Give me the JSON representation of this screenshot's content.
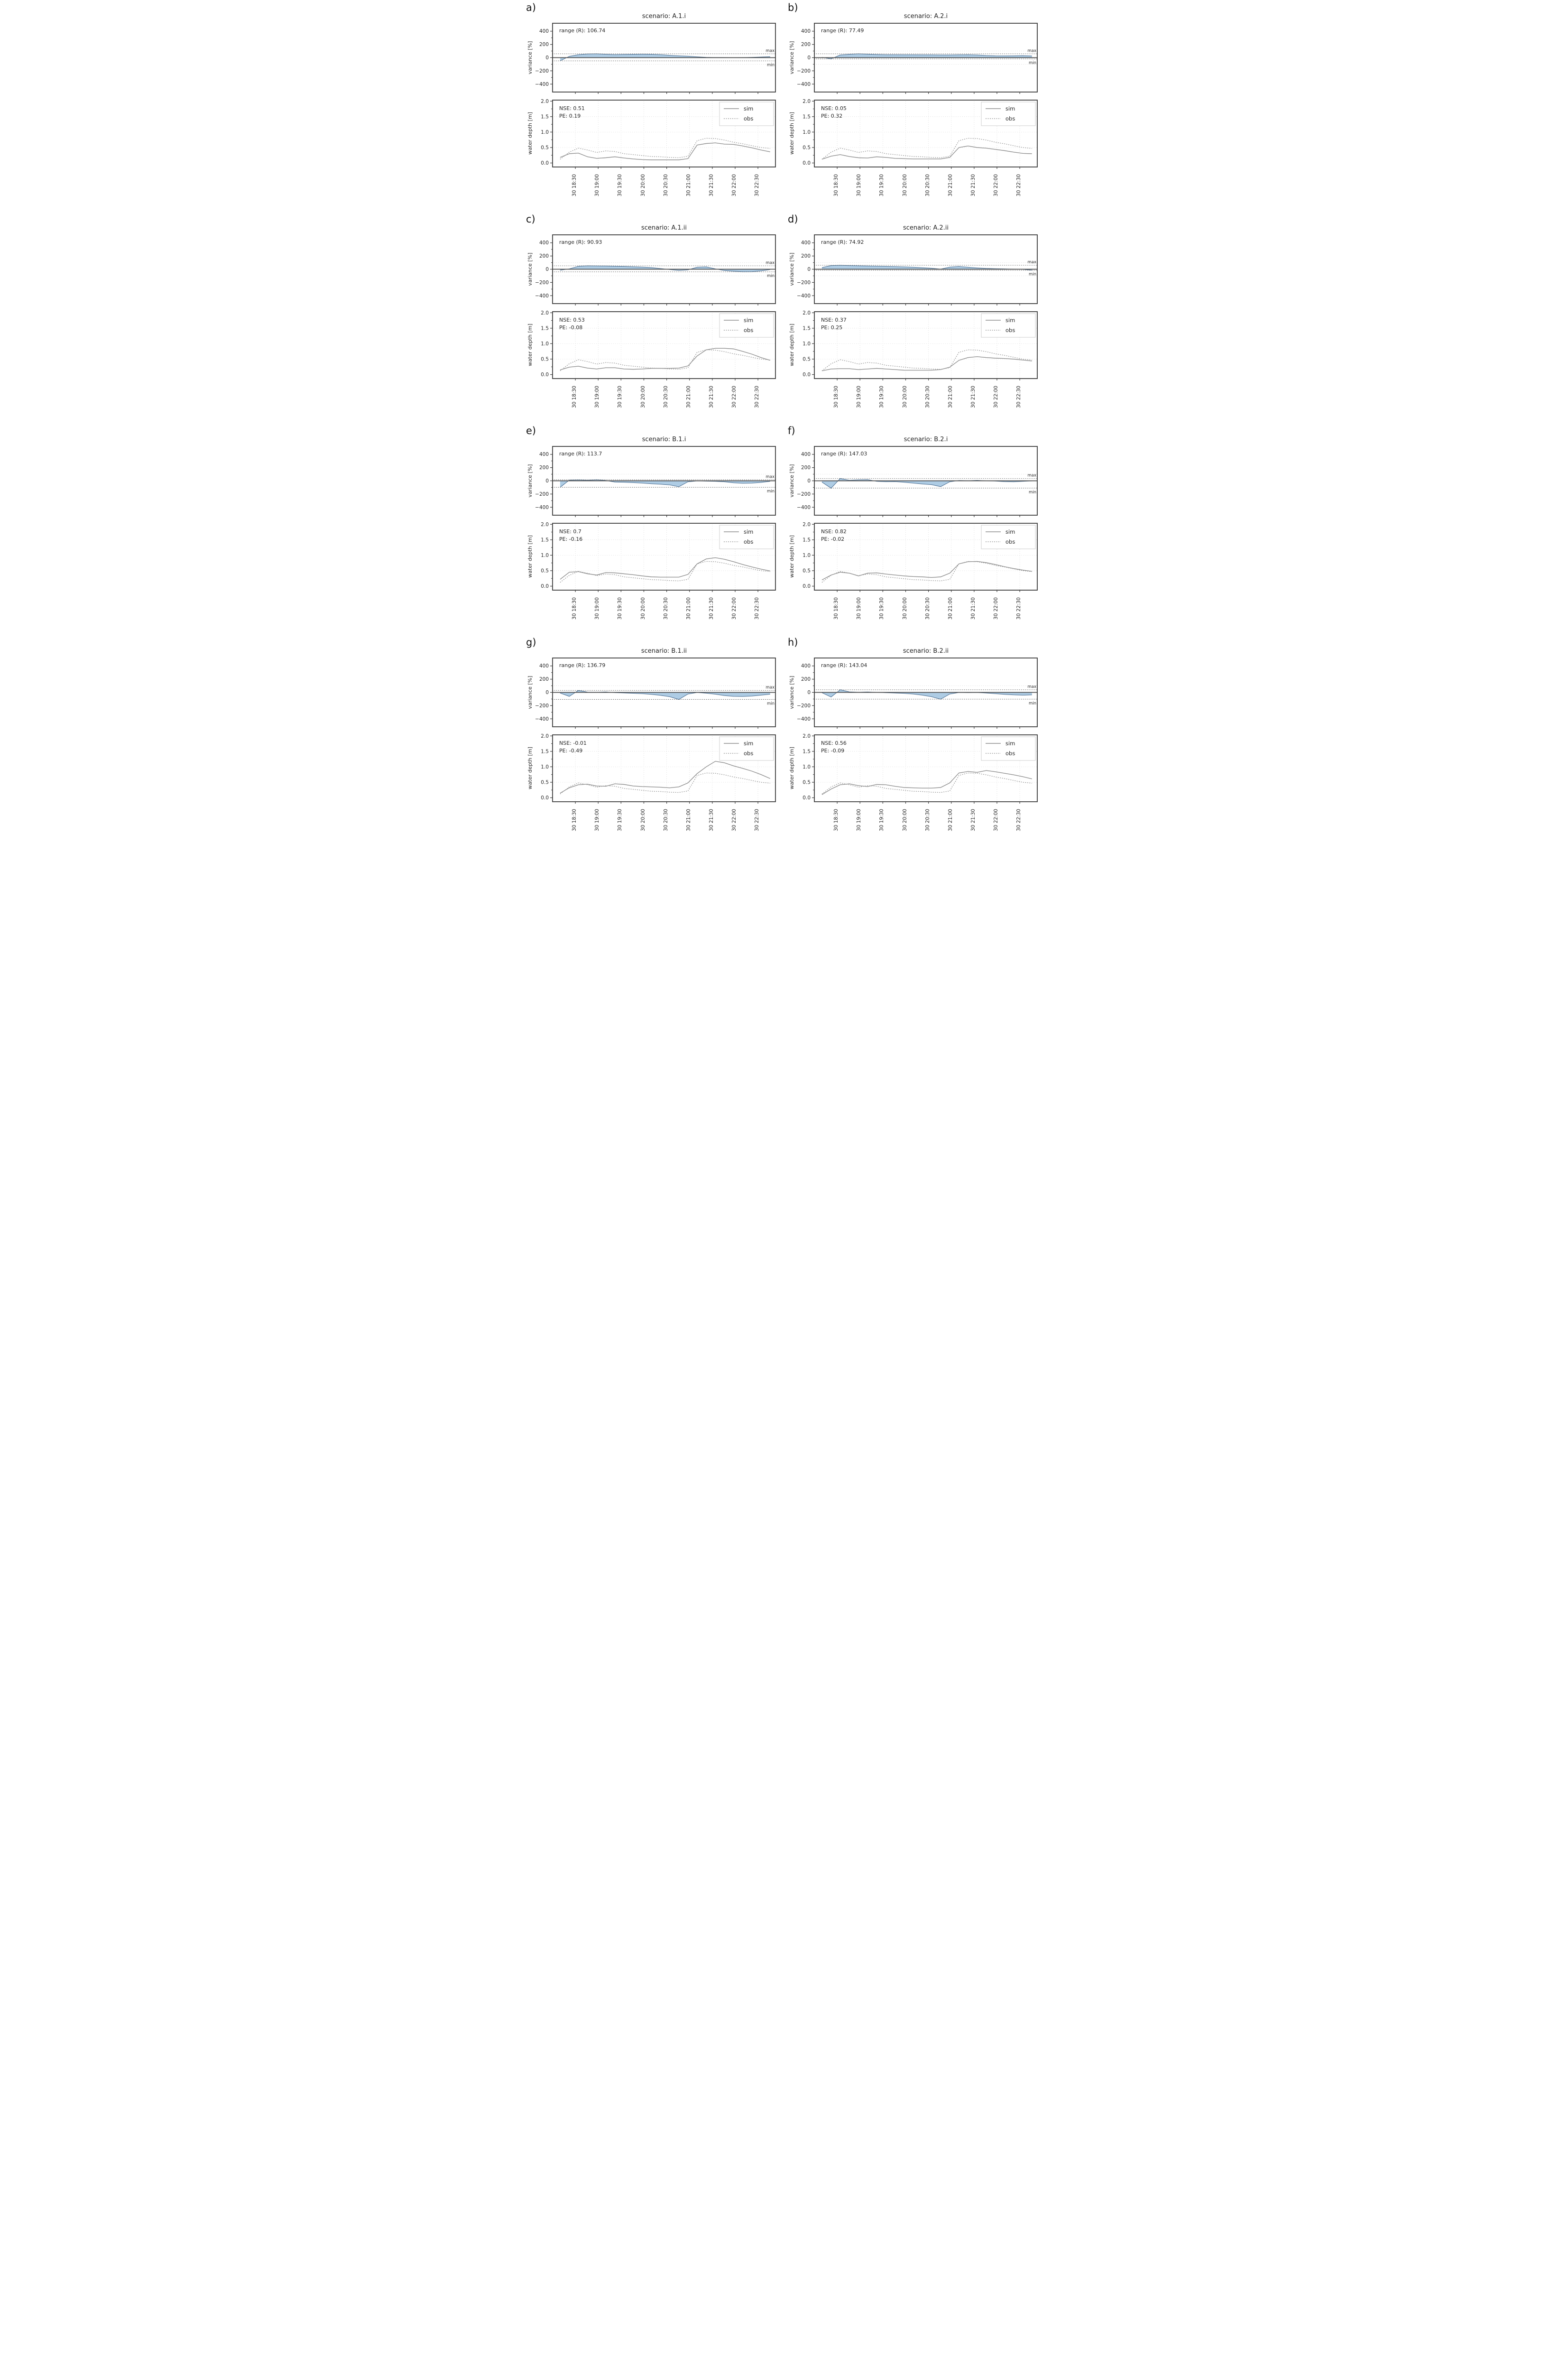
{
  "axes": {
    "x_tick_labels": [
      "30 18:30",
      "30 19:00",
      "30 19:30",
      "30 20:00",
      "30 20:30",
      "30 21:00",
      "30 21:30",
      "30 22:00",
      "30 22:30"
    ],
    "x_tick_minutes": [
      30,
      60,
      90,
      120,
      150,
      180,
      210,
      240,
      270
    ],
    "x_range_minutes": [
      0,
      293
    ],
    "variance": {
      "ylabel": "variance [%]",
      "ytick_labels": [
        "400",
        "200",
        "0",
        "−200",
        "−400"
      ],
      "ytick_values": [
        400,
        200,
        0,
        -200,
        -400
      ],
      "minor_tick_values": [
        300,
        100,
        -100,
        -300
      ],
      "grid_values": [
        100,
        -100
      ],
      "ylim": [
        -520,
        520
      ],
      "grid": "off"
    },
    "depth": {
      "ylabel": "water depth [m]",
      "ytick_labels": [
        "2.0",
        "1.5",
        "1.0",
        "0.5",
        "0.0"
      ],
      "ytick_values": [
        2.0,
        1.5,
        1.0,
        0.5,
        0.0
      ],
      "minor_tick_values": [
        1.75,
        1.25,
        0.75,
        0.25
      ],
      "grid_values": [
        1.5,
        1.0,
        0.5
      ],
      "ylim": [
        -0.13,
        2.05
      ],
      "grid": "on"
    }
  },
  "legend": {
    "sim_label": "sim",
    "obs_label": "obs",
    "position": "top-right"
  },
  "annotations": {
    "max_label": "max",
    "min_label": "min"
  },
  "colors": {
    "area_fill": "#aac9e3",
    "area_edge": "#44688c",
    "zero_line": "#4d4d4d",
    "dotted_line": "#555555",
    "sim_line": "#8f8f8f",
    "obs_line": "#9b9b9b",
    "grid": "#cfcfcf",
    "frame": "#3c3c3c",
    "legend_border": "#cccccc"
  },
  "chart_data": {
    "type": "line",
    "x_minutes": [
      10,
      22,
      34,
      46,
      58,
      70,
      82,
      94,
      106,
      118,
      130,
      142,
      154,
      166,
      178,
      190,
      202,
      214,
      226,
      238,
      250,
      262,
      274,
      286
    ],
    "obs_depth_m": [
      0.12,
      0.35,
      0.48,
      0.42,
      0.34,
      0.39,
      0.37,
      0.3,
      0.27,
      0.24,
      0.21,
      0.2,
      0.18,
      0.17,
      0.22,
      0.72,
      0.8,
      0.79,
      0.74,
      0.67,
      0.62,
      0.56,
      0.5,
      0.47
    ],
    "panels": [
      {
        "letter": "a)",
        "title": "scenario: A.1.i",
        "range_text": "range (R): 106.74",
        "range_R": 106.74,
        "nse_text": "NSE: 0.51",
        "nse": 0.51,
        "pe_text": "PE: 0.19",
        "pe": 0.19,
        "max_line": 58,
        "min_line": -49,
        "variance_pct": [
          -49,
          20,
          45,
          55,
          58,
          50,
          46,
          48,
          50,
          52,
          50,
          45,
          35,
          28,
          22,
          12,
          5,
          3,
          2,
          0,
          2,
          5,
          10,
          15
        ],
        "sim_depth_m": [
          0.18,
          0.3,
          0.32,
          0.2,
          0.15,
          0.17,
          0.2,
          0.16,
          0.13,
          0.11,
          0.1,
          0.1,
          0.1,
          0.1,
          0.14,
          0.58,
          0.63,
          0.65,
          0.61,
          0.6,
          0.55,
          0.49,
          0.42,
          0.36
        ]
      },
      {
        "letter": "b)",
        "title": "scenario: A.2.i",
        "range_text": "range (R): 77.49",
        "range_R": 77.49,
        "nse_text": "NSE: 0.05",
        "nse": 0.05,
        "pe_text": "PE: 0.32",
        "pe": 0.32,
        "max_line": 58,
        "min_line": -19,
        "variance_pct": [
          5,
          -19,
          40,
          50,
          58,
          52,
          47,
          44,
          44,
          43,
          43,
          42,
          42,
          40,
          40,
          43,
          44,
          40,
          32,
          28,
          27,
          28,
          30,
          26
        ],
        "sim_depth_m": [
          0.12,
          0.22,
          0.27,
          0.21,
          0.17,
          0.16,
          0.2,
          0.18,
          0.15,
          0.14,
          0.13,
          0.13,
          0.13,
          0.13,
          0.18,
          0.5,
          0.55,
          0.5,
          0.48,
          0.44,
          0.4,
          0.35,
          0.31,
          0.3
        ]
      },
      {
        "letter": "c)",
        "title": "scenario: A.1.ii",
        "range_text": "range (R): 90.93",
        "range_R": 90.93,
        "nse_text": "NSE: 0.53",
        "nse": 0.53,
        "pe_text": "PE: -0.08",
        "pe": -0.08,
        "max_line": 52,
        "min_line": -39,
        "variance_pct": [
          -15,
          5,
          45,
          52,
          50,
          48,
          45,
          42,
          38,
          32,
          25,
          10,
          -5,
          -18,
          -10,
          30,
          36,
          5,
          -20,
          -30,
          -39,
          -38,
          -25,
          -5
        ],
        "sim_depth_m": [
          0.15,
          0.24,
          0.27,
          0.21,
          0.18,
          0.22,
          0.22,
          0.18,
          0.17,
          0.18,
          0.2,
          0.2,
          0.2,
          0.21,
          0.28,
          0.6,
          0.8,
          0.85,
          0.85,
          0.83,
          0.75,
          0.66,
          0.55,
          0.46
        ]
      },
      {
        "letter": "d)",
        "title": "scenario: A.2.ii",
        "range_text": "range (R): 74.92",
        "range_R": 74.92,
        "nse_text": "NSE: 0.37",
        "nse": 0.37,
        "pe_text": "PE: 0.25",
        "pe": 0.25,
        "max_line": 60,
        "min_line": -15,
        "variance_pct": [
          25,
          55,
          60,
          55,
          52,
          49,
          46,
          43,
          40,
          36,
          30,
          24,
          15,
          2,
          32,
          42,
          30,
          20,
          12,
          8,
          5,
          2,
          -2,
          -15
        ],
        "sim_depth_m": [
          0.12,
          0.18,
          0.19,
          0.19,
          0.16,
          0.18,
          0.2,
          0.18,
          0.16,
          0.14,
          0.14,
          0.14,
          0.14,
          0.16,
          0.24,
          0.46,
          0.55,
          0.58,
          0.55,
          0.53,
          0.52,
          0.5,
          0.47,
          0.44
        ]
      },
      {
        "letter": "e)",
        "title": "scenario: B.1.i",
        "range_text": "range (R): 113.7",
        "range_R": 113.7,
        "nse_text": "NSE: 0.7",
        "nse": 0.7,
        "pe_text": "PE: -0.16",
        "pe": -0.16,
        "max_line": 16,
        "min_line": -98,
        "variance_pct": [
          -98,
          10,
          14,
          8,
          16,
          5,
          -20,
          -22,
          -28,
          -35,
          -45,
          -52,
          -62,
          -90,
          -15,
          -2,
          -5,
          -8,
          -15,
          -30,
          -38,
          -35,
          -25,
          -8
        ],
        "sim_depth_m": [
          0.22,
          0.45,
          0.47,
          0.4,
          0.36,
          0.44,
          0.43,
          0.4,
          0.37,
          0.33,
          0.3,
          0.29,
          0.29,
          0.29,
          0.38,
          0.72,
          0.88,
          0.92,
          0.87,
          0.79,
          0.7,
          0.62,
          0.55,
          0.49
        ]
      },
      {
        "letter": "f)",
        "title": "scenario: B.2.i",
        "range_text": "range (R): 147.03",
        "range_R": 147.03,
        "nse_text": "NSE: 0.82",
        "nse": 0.82,
        "pe_text": "PE: -0.02",
        "pe": -0.02,
        "max_line": 35,
        "min_line": -112,
        "variance_pct": [
          -20,
          -112,
          35,
          8,
          15,
          18,
          -8,
          -14,
          -12,
          -22,
          -35,
          -48,
          -58,
          -88,
          -15,
          5,
          2,
          7,
          0,
          -4,
          -12,
          -15,
          -8,
          -2
        ],
        "sim_depth_m": [
          0.2,
          0.36,
          0.45,
          0.42,
          0.33,
          0.42,
          0.43,
          0.39,
          0.36,
          0.33,
          0.31,
          0.3,
          0.28,
          0.3,
          0.42,
          0.72,
          0.79,
          0.8,
          0.76,
          0.7,
          0.63,
          0.57,
          0.52,
          0.48
        ]
      },
      {
        "letter": "g)",
        "title": "scenario: B.1.ii",
        "range_text": "range (R): 136.79",
        "range_R": 136.79,
        "nse_text": "NSE: -0.01",
        "nse": -0.01,
        "pe_text": "PE: -0.49",
        "pe": -0.49,
        "max_line": 30,
        "min_line": -107,
        "variance_pct": [
          -10,
          -60,
          30,
          4,
          3,
          7,
          -4,
          -9,
          -14,
          -20,
          -30,
          -45,
          -65,
          -107,
          -25,
          -2,
          -12,
          -28,
          -48,
          -60,
          -62,
          -55,
          -42,
          -28
        ],
        "sim_depth_m": [
          0.15,
          0.32,
          0.42,
          0.44,
          0.38,
          0.37,
          0.45,
          0.43,
          0.38,
          0.36,
          0.35,
          0.34,
          0.32,
          0.35,
          0.48,
          0.78,
          1.0,
          1.18,
          1.13,
          1.03,
          0.95,
          0.86,
          0.75,
          0.62
        ]
      },
      {
        "letter": "h)",
        "title": "scenario: B.2.ii",
        "range_text": "range (R): 143.04",
        "range_R": 143.04,
        "nse_text": "NSE: 0.56",
        "nse": 0.56,
        "pe_text": "PE: -0.09",
        "pe": -0.09,
        "max_line": 40,
        "min_line": -103,
        "variance_pct": [
          -5,
          -70,
          40,
          8,
          3,
          7,
          0,
          -6,
          -10,
          -15,
          -25,
          -42,
          -65,
          -103,
          -25,
          -2,
          -4,
          -3,
          -10,
          -20,
          -30,
          -38,
          -42,
          -38
        ],
        "sim_depth_m": [
          0.1,
          0.28,
          0.42,
          0.45,
          0.39,
          0.36,
          0.43,
          0.42,
          0.37,
          0.33,
          0.32,
          0.31,
          0.31,
          0.33,
          0.48,
          0.8,
          0.85,
          0.82,
          0.88,
          0.84,
          0.79,
          0.74,
          0.68,
          0.61
        ]
      }
    ]
  }
}
